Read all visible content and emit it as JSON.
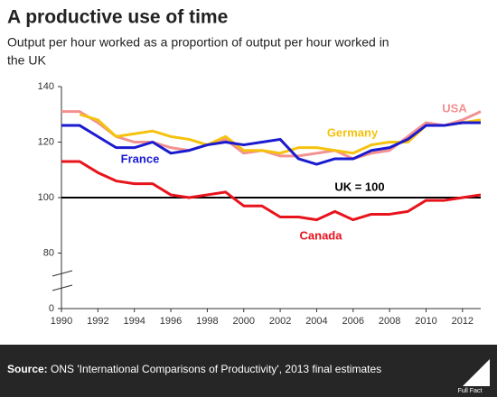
{
  "chart_data": {
    "type": "line",
    "title": "A productive use of time",
    "subtitle": [
      "Output per hour worked as a proportion of output per hour worked in",
      "the UK"
    ],
    "x": [
      1990,
      1991,
      1992,
      1993,
      1994,
      1995,
      1996,
      1997,
      1998,
      1999,
      2000,
      2001,
      2002,
      2003,
      2004,
      2005,
      2006,
      2007,
      2008,
      2009,
      2010,
      2011,
      2012,
      2013
    ],
    "series": [
      {
        "name": "USA",
        "color": "#f39191",
        "values": [
          131,
          131,
          127,
          122,
          120,
          120,
          118,
          117,
          119,
          121,
          116,
          117,
          115,
          115,
          116,
          117,
          114,
          116,
          117,
          122,
          127,
          126,
          128,
          131
        ]
      },
      {
        "name": "Germany",
        "color": "#f5c20e",
        "values": [
          null,
          130,
          128,
          122,
          123,
          124,
          122,
          121,
          119,
          122,
          117,
          117,
          116,
          118,
          118,
          117,
          116,
          119,
          120,
          120,
          126,
          126,
          127,
          128
        ]
      },
      {
        "name": "France",
        "color": "#1a1ad0",
        "values": [
          126,
          126,
          122,
          118,
          118,
          120,
          116,
          117,
          119,
          120,
          119,
          120,
          121,
          114,
          112,
          114,
          114,
          117,
          118,
          121,
          126,
          126,
          127,
          127
        ]
      },
      {
        "name": "Canada",
        "color": "#e8131b",
        "values": [
          113,
          113,
          109,
          106,
          105,
          105,
          101,
          100,
          101,
          102,
          97,
          97,
          93,
          93,
          92,
          95,
          92,
          94,
          94,
          95,
          99,
          99,
          100,
          101
        ]
      }
    ],
    "reference_line": {
      "value": 100,
      "label": "UK = 100",
      "color": "#000000"
    },
    "xlim": [
      1990,
      2013
    ],
    "xticks": [
      1990,
      1992,
      1994,
      1996,
      1998,
      2000,
      2002,
      2004,
      2006,
      2008,
      2010,
      2012
    ],
    "ylim": [
      60,
      140
    ],
    "yticks": [
      {
        "value": 60,
        "label": "0"
      },
      80,
      100,
      120,
      140
    ],
    "grid": false,
    "source": {
      "label": "Source:",
      "text": "ONS 'International Comparisons of Productivity', 2013 final estimates"
    },
    "logo": "Full Fact"
  }
}
